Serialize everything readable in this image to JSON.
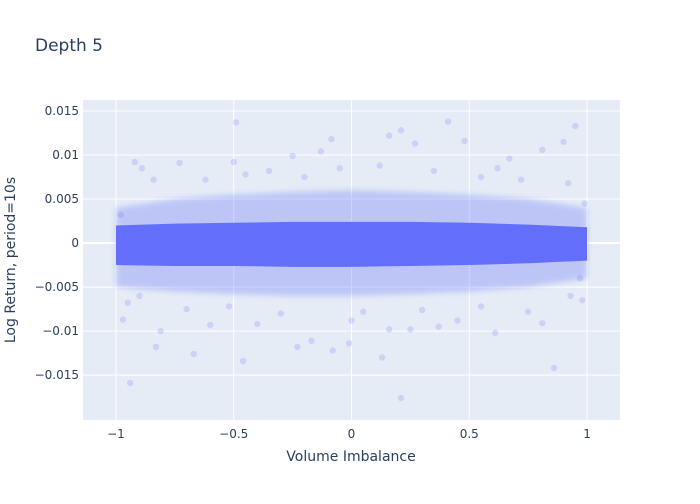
{
  "chart_data": {
    "type": "scatter",
    "title": "Depth 5",
    "xlabel": "Volume Imbalance",
    "ylabel": "Log Return, period=10s",
    "xlim": [
      -1.14,
      1.14
    ],
    "ylim": [
      -0.0201,
      0.01625
    ],
    "xticks": [
      -1,
      -0.5,
      0,
      0.5,
      1
    ],
    "xtick_labels": [
      "−1",
      "−0.5",
      "0",
      "0.5",
      "1"
    ],
    "yticks": [
      0.015,
      0.01,
      0.005,
      0,
      -0.005,
      -0.01,
      -0.015
    ],
    "ytick_labels": [
      "0.015",
      "0.01",
      "0.005",
      "0",
      "−0.005",
      "−0.01",
      "−0.015"
    ],
    "grid": true,
    "colors": {
      "marker": "#636efa",
      "plot_bg": "#e5ecf6",
      "grid": "#ffffff",
      "text": "#2a3f5f"
    },
    "marker_opacity": 0.2,
    "dense_band": {
      "x": [
        -1,
        -0.75,
        -0.5,
        -0.25,
        0,
        0.25,
        0.5,
        0.75,
        1
      ],
      "core_low": [
        -0.0025,
        -0.0026,
        -0.0026,
        -0.0027,
        -0.0027,
        -0.0026,
        -0.0025,
        -0.0023,
        -0.002
      ],
      "core_high": [
        0.002,
        0.0022,
        0.0023,
        0.0024,
        0.0024,
        0.0024,
        0.0023,
        0.0021,
        0.0018
      ],
      "halo_low": [
        -0.005,
        -0.0055,
        -0.0058,
        -0.006,
        -0.006,
        -0.0058,
        -0.0055,
        -0.005,
        -0.004
      ],
      "halo_high": [
        0.004,
        0.005,
        0.0055,
        0.0058,
        0.006,
        0.0058,
        0.0055,
        0.005,
        0.004
      ]
    },
    "points": [
      [
        -0.49,
        0.0137
      ],
      [
        -0.085,
        0.0118
      ],
      [
        -0.13,
        0.0104
      ],
      [
        -0.92,
        0.0092
      ],
      [
        -0.89,
        0.0085
      ],
      [
        -0.73,
        0.0091
      ],
      [
        -0.5,
        0.0092
      ],
      [
        -0.25,
        0.0099
      ],
      [
        -0.94,
        -0.0159
      ],
      [
        -0.46,
        -0.0134
      ],
      [
        -0.67,
        -0.0126
      ],
      [
        -0.83,
        -0.0118
      ],
      [
        -0.08,
        -0.0122
      ],
      [
        -0.97,
        -0.0087
      ],
      [
        -0.81,
        -0.01
      ],
      [
        -0.23,
        -0.0118
      ],
      [
        -0.17,
        -0.0111
      ],
      [
        0.41,
        0.0138
      ],
      [
        0.21,
        0.0128
      ],
      [
        0.16,
        0.0122
      ],
      [
        0.48,
        0.0116
      ],
      [
        0.95,
        0.0133
      ],
      [
        0.9,
        0.0115
      ],
      [
        0.81,
        0.0106
      ],
      [
        0.67,
        0.0096
      ],
      [
        0.27,
        0.0113
      ],
      [
        0.21,
        -0.0176
      ],
      [
        0.86,
        -0.0142
      ],
      [
        0.13,
        -0.013
      ],
      [
        0.61,
        -0.0102
      ],
      [
        -0.01,
        -0.0114
      ],
      [
        0.81,
        -0.0091
      ],
      [
        0.98,
        -0.0065
      ],
      [
        0.16,
        -0.0098
      ],
      [
        0.25,
        -0.0098
      ],
      [
        0.37,
        -0.0095
      ],
      [
        -0.84,
        0.0072
      ],
      [
        -0.62,
        0.0072
      ],
      [
        -0.45,
        0.0078
      ],
      [
        -0.35,
        0.0082
      ],
      [
        -0.05,
        0.0085
      ],
      [
        0.12,
        0.0088
      ],
      [
        0.35,
        0.0082
      ],
      [
        0.55,
        0.0075
      ],
      [
        0.72,
        0.0072
      ],
      [
        0.92,
        0.0068
      ],
      [
        -0.95,
        -0.0068
      ],
      [
        -0.7,
        -0.0075
      ],
      [
        -0.52,
        -0.0072
      ],
      [
        -0.3,
        -0.008
      ],
      [
        0.05,
        -0.0078
      ],
      [
        0.3,
        -0.0076
      ],
      [
        0.55,
        -0.0072
      ],
      [
        0.75,
        -0.0078
      ],
      [
        0.93,
        -0.006
      ],
      [
        -0.98,
        0.0032
      ],
      [
        -0.9,
        -0.006
      ],
      [
        0.99,
        0.0045
      ],
      [
        0.97,
        -0.004
      ],
      [
        -0.6,
        -0.0093
      ],
      [
        -0.4,
        -0.0092
      ],
      [
        0.0,
        -0.0088
      ],
      [
        0.45,
        -0.0088
      ],
      [
        -0.2,
        0.0075
      ],
      [
        0.62,
        0.0085
      ]
    ]
  }
}
